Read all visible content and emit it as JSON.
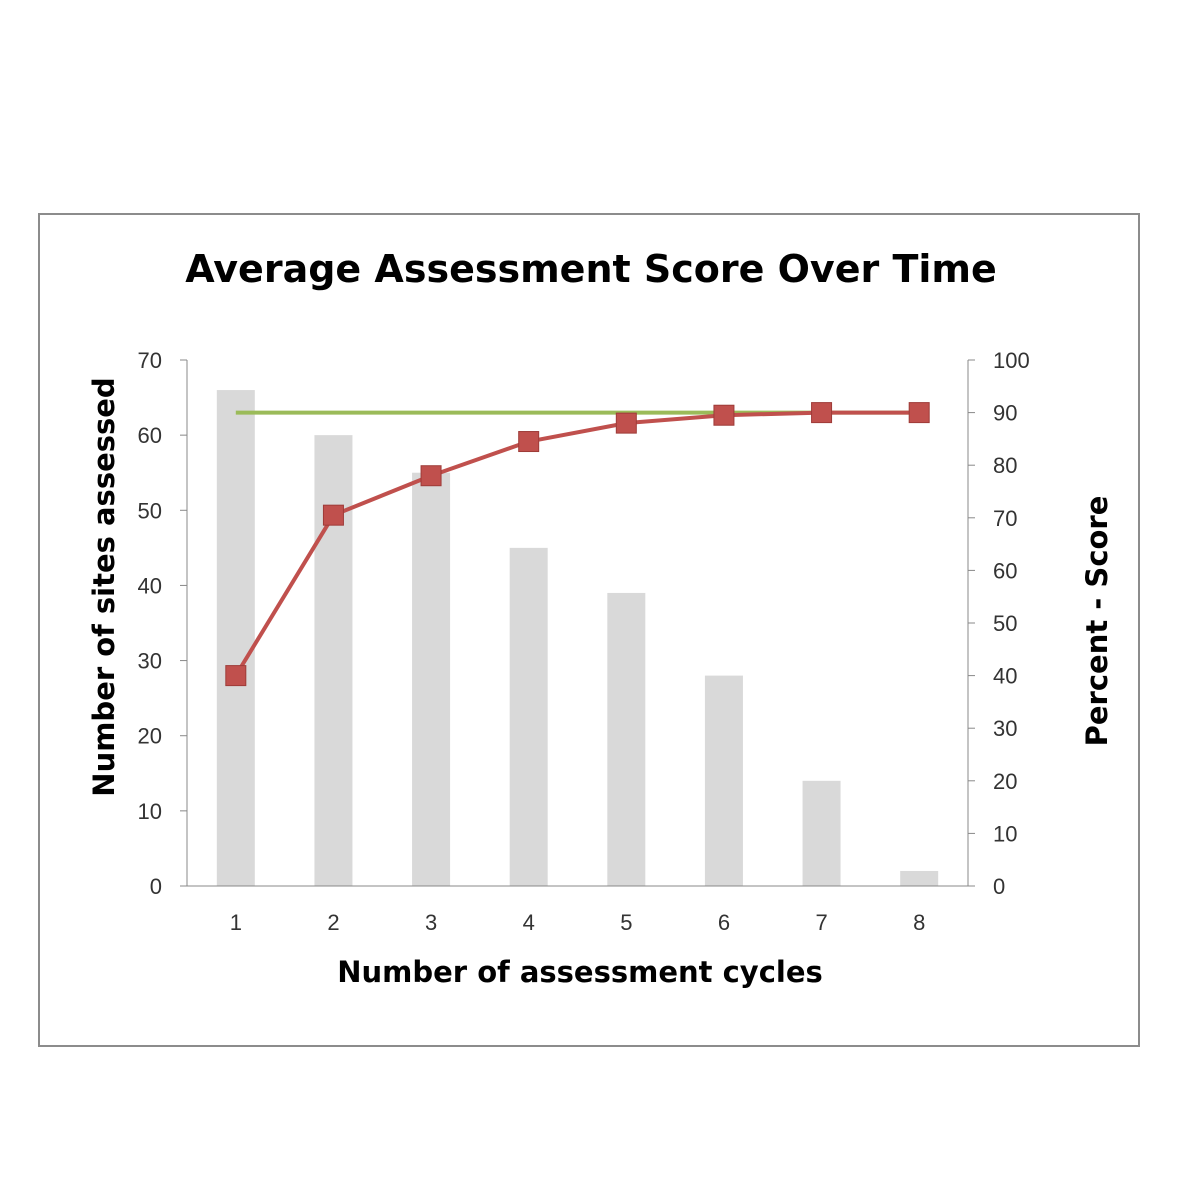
{
  "chart_data": {
    "type": "bar",
    "title": "Average Assessment Score Over Time",
    "xlabel": "Number of assessment cycles",
    "ylabel": "Number of sites assessed",
    "y2label": "Percent - Score",
    "categories": [
      "1",
      "2",
      "3",
      "4",
      "5",
      "6",
      "7",
      "8"
    ],
    "ylim": [
      0,
      70
    ],
    "yticks": [
      0,
      10,
      20,
      30,
      40,
      50,
      60,
      70
    ],
    "y2lim": [
      0,
      100
    ],
    "y2ticks": [
      0,
      10,
      20,
      30,
      40,
      50,
      60,
      70,
      80,
      90,
      100
    ],
    "grid": false,
    "legend": "none",
    "series": [
      {
        "type": "bar",
        "axis": "left",
        "color": "#d9d9d9",
        "values": [
          66,
          60,
          55,
          45,
          39,
          28,
          14,
          2
        ]
      },
      {
        "type": "line",
        "axis": "right",
        "color": "#c0504d",
        "marker": "square",
        "values": [
          40,
          70.5,
          78,
          84.5,
          88,
          89.5,
          90,
          90
        ]
      },
      {
        "type": "line",
        "axis": "right",
        "color": "#9bbb59",
        "marker": "none",
        "values": [
          90,
          90,
          90,
          90,
          90,
          90,
          90,
          90
        ]
      }
    ]
  }
}
